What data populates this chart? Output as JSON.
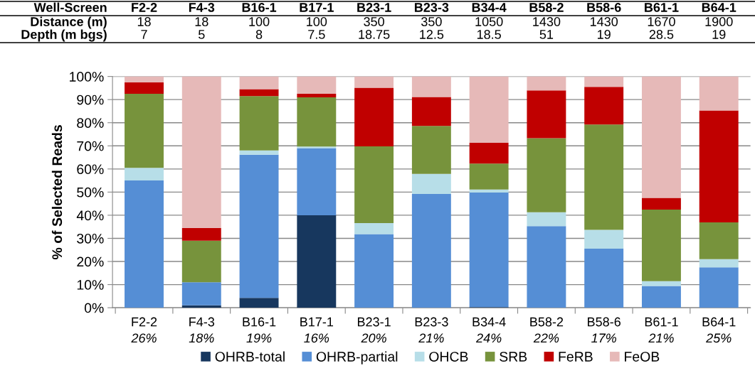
{
  "chart_data": {
    "type": "bar",
    "stacked": true,
    "ylabel": "% of Selected Reads",
    "categories": [
      "F2-2",
      "F4-3",
      "B16-1",
      "B17-1",
      "B23-1",
      "B23-3",
      "B34-4",
      "B58-2",
      "B58-6",
      "B61-1",
      "B64-1"
    ],
    "series": [
      {
        "name": "OHRB-total",
        "color": "#17375e",
        "values": [
          0,
          1,
          4.3,
          40,
          0,
          0,
          0.3,
          0,
          0,
          0,
          0
        ]
      },
      {
        "name": "OHRB-partial",
        "color": "#558ed5",
        "values": [
          55,
          10,
          61.9,
          29,
          31.8,
          49.2,
          49.5,
          35.3,
          25.5,
          9.4,
          17.5
        ]
      },
      {
        "name": "OHCB",
        "color": "#b7dee8",
        "values": [
          5.5,
          0,
          1.8,
          0.7,
          4.8,
          8.7,
          1.3,
          6,
          8.2,
          2.1,
          3.5
        ]
      },
      {
        "name": "SRB",
        "color": "#77933c",
        "values": [
          32,
          18,
          23.5,
          21.3,
          33.2,
          20.7,
          11.2,
          32,
          45.5,
          30.9,
          15.9
        ]
      },
      {
        "name": "FeRB",
        "color": "#c00000",
        "values": [
          5,
          5.5,
          3,
          1.5,
          25.3,
          12.5,
          9,
          20.7,
          16.3,
          5.1,
          48.4
        ]
      },
      {
        "name": "FeOB",
        "color": "#e6b9b8",
        "values": [
          2.5,
          65.5,
          5.5,
          7.5,
          4.9,
          8.9,
          28.7,
          6,
          4.5,
          52.5,
          14.7
        ]
      }
    ],
    "ylim": [
      0,
      100
    ],
    "yticks": [
      {
        "value": 0,
        "label": "0%"
      },
      {
        "value": 10,
        "label": "10%"
      },
      {
        "value": 20,
        "label": "20%"
      },
      {
        "value": 30,
        "label": "30%"
      },
      {
        "value": 40,
        "label": "40%"
      },
      {
        "value": 50,
        "label": "50%"
      },
      {
        "value": 60,
        "label": "60%"
      },
      {
        "value": 70,
        "label": "70%"
      },
      {
        "value": 80,
        "label": "80%"
      },
      {
        "value": 90,
        "label": "90%"
      },
      {
        "value": 100,
        "label": "100%"
      }
    ],
    "grid": "y",
    "legend": "bottom",
    "annotations": [
      "26%",
      "18%",
      "19%",
      "16%",
      "20%",
      "21%",
      "24%",
      "22%",
      "17%",
      "21%",
      "25%",
      "Well-Screen",
      "F2-2",
      "F4-3",
      "B16-1",
      "B17-1",
      "B23-1",
      "B23-3",
      "B34-4",
      "B58-2",
      "B58-6",
      "B61-1",
      "B64-1",
      "Distance (m)",
      "18",
      "18",
      "100",
      "100",
      "350",
      "350",
      "1050",
      "1430",
      "1430",
      "1670",
      "1900",
      "Depth (m bgs)",
      "7",
      "5",
      "8",
      "7.5",
      "18.75",
      "12.5",
      "18.5",
      "51",
      "19",
      "28.5",
      "19"
    ]
  }
}
